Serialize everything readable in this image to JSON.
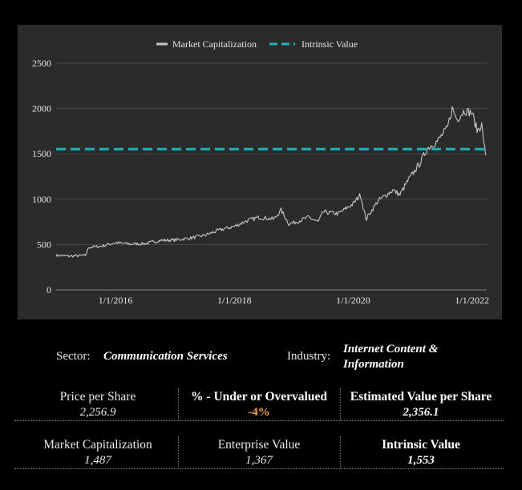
{
  "chart_data": {
    "type": "line",
    "legend": [
      "Market Capitalization",
      "Intrinsic Value"
    ],
    "legend_position": "top-center",
    "grid": true,
    "yticks": [
      0,
      500,
      1000,
      1500,
      2000,
      2500
    ],
    "ylim": [
      0,
      2500
    ],
    "xticks": [
      "1/1/2016",
      "1/1/2018",
      "1/1/2020",
      "1/1/2022"
    ],
    "xlim": [
      "2015-01-01",
      "2022-04-01"
    ],
    "series": [
      {
        "name": "Market Capitalization",
        "color": "#c8c8c8",
        "points": [
          [
            "2015-01-01",
            380
          ],
          [
            "2015-04-01",
            372
          ],
          [
            "2015-07-01",
            380
          ],
          [
            "2015-07-20",
            470
          ],
          [
            "2015-10-01",
            480
          ],
          [
            "2016-01-01",
            520
          ],
          [
            "2016-04-01",
            505
          ],
          [
            "2016-07-01",
            510
          ],
          [
            "2016-10-01",
            545
          ],
          [
            "2017-01-01",
            550
          ],
          [
            "2017-04-01",
            570
          ],
          [
            "2017-07-01",
            600
          ],
          [
            "2017-10-01",
            660
          ],
          [
            "2018-01-01",
            700
          ],
          [
            "2018-03-15",
            760
          ],
          [
            "2018-06-01",
            800
          ],
          [
            "2018-09-01",
            780
          ],
          [
            "2018-10-15",
            880
          ],
          [
            "2018-12-01",
            730
          ],
          [
            "2019-01-01",
            740
          ],
          [
            "2019-04-01",
            800
          ],
          [
            "2019-06-01",
            750
          ],
          [
            "2019-07-01",
            860
          ],
          [
            "2019-10-01",
            840
          ],
          [
            "2020-01-01",
            950
          ],
          [
            "2020-02-15",
            1050
          ],
          [
            "2020-03-20",
            780
          ],
          [
            "2020-06-01",
            980
          ],
          [
            "2020-09-01",
            1100
          ],
          [
            "2020-10-15",
            1050
          ],
          [
            "2020-12-01",
            1200
          ],
          [
            "2021-02-15",
            1400
          ],
          [
            "2021-04-01",
            1560
          ],
          [
            "2021-06-01",
            1640
          ],
          [
            "2021-08-01",
            1780
          ],
          [
            "2021-09-01",
            2000
          ],
          [
            "2021-10-01",
            1880
          ],
          [
            "2021-11-15",
            1980
          ],
          [
            "2022-01-01",
            1950
          ],
          [
            "2022-02-01",
            1760
          ],
          [
            "2022-03-01",
            1820
          ],
          [
            "2022-03-25",
            1487
          ]
        ]
      },
      {
        "name": "Intrinsic Value",
        "color": "#1ab3b8",
        "style": "dashed",
        "value": 1553
      }
    ]
  },
  "info": {
    "sector_label": "Sector:",
    "sector_value": "Communication Services",
    "industry_label": "Industry:",
    "industry_value_line1": "Internet Content &",
    "industry_value_line2": "Information"
  },
  "metrics": {
    "price_label": "Price per Share",
    "price_value": "2,256.9",
    "under_over_label": "% - Under or Overvalued",
    "under_over_value": "-4%",
    "estimated_label": "Estimated Value per Share",
    "estimated_value": "2,356.1",
    "market_cap_label": "Market Capitalization",
    "market_cap_value": "1,487",
    "ev_label": "Enterprise Value",
    "ev_value": "1,367",
    "intrinsic_label": "Intrinsic Value",
    "intrinsic_value": "1,553"
  },
  "colors": {
    "accent": "#f0a23c",
    "intrinsic_line": "#1ab3b8",
    "chart_bg": "#2b2b2b"
  }
}
